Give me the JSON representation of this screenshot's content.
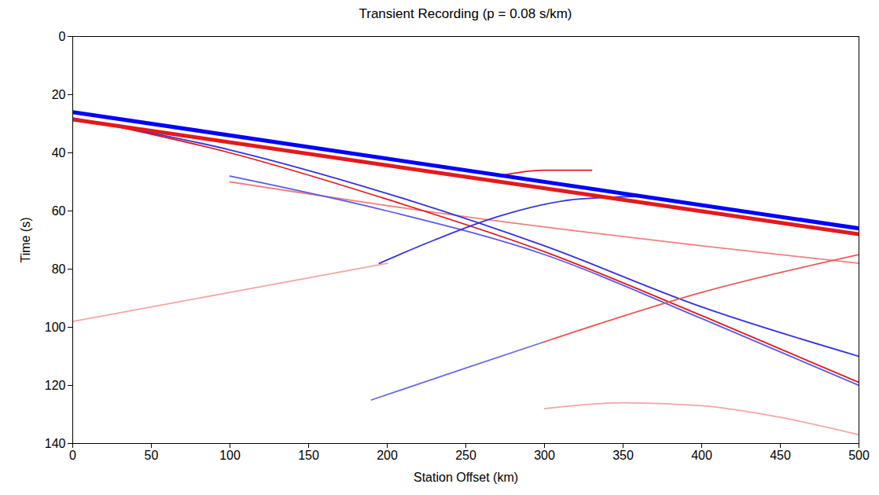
{
  "chart_data": {
    "type": "line",
    "title": "Transient Recording (p = 0.08 s/km)",
    "x_label": "Station Offset (km)",
    "y_label": "Time (s)",
    "xlim": [
      0,
      500
    ],
    "xticks": [
      0,
      50,
      100,
      150,
      200,
      250,
      300,
      350,
      400,
      450,
      500
    ],
    "ylim": [
      140,
      0
    ],
    "yticks": [
      0,
      20,
      40,
      60,
      80,
      100,
      120,
      140
    ],
    "grid": false,
    "series": [
      {
        "color": "#f3a6a6",
        "line_style": "solid",
        "x": [
          0,
          100,
          200
        ],
        "values": [
          98,
          88,
          78
        ]
      },
      {
        "color": "#f3a6a6",
        "line_style": "solid",
        "x": [
          300,
          350,
          400,
          450,
          500
        ],
        "values": [
          128,
          126,
          127,
          131,
          137
        ]
      },
      {
        "color": "#f08080",
        "line_style": "solid",
        "x": [
          100,
          250,
          400,
          500
        ],
        "values": [
          50,
          62,
          72,
          78
        ]
      },
      {
        "color": "#5a5ae6",
        "line_style": "solid",
        "x": [
          100,
          200,
          300,
          400,
          500
        ],
        "values": [
          48,
          60,
          75,
          97,
          120
        ]
      },
      {
        "color": "#e31a1c",
        "line_style": "solid",
        "x": [
          20,
          100,
          200,
          300,
          400,
          500
        ],
        "values": [
          30,
          40,
          56,
          74,
          96,
          119
        ]
      },
      {
        "color": "#3333dd",
        "line_style": "solid",
        "x": [
          0,
          100,
          200,
          300,
          400,
          500
        ],
        "values": [
          28,
          39,
          54,
          72,
          93,
          110
        ]
      },
      {
        "color": "#3333dd",
        "line_style": "solid",
        "x": [
          195,
          230,
          270,
          320,
          360
        ],
        "values": [
          78,
          70,
          62,
          56,
          55
        ]
      },
      {
        "color": "#e31a1c",
        "line_style": "solid",
        "x": [
          270,
          300,
          330
        ],
        "values": [
          48,
          46,
          46
        ]
      },
      {
        "color": "#6b6be8",
        "line_style": "solid",
        "x": [
          190,
          250,
          300
        ],
        "values": [
          125,
          114,
          105
        ]
      },
      {
        "color": "#ee5555",
        "line_style": "solid",
        "x": [
          300,
          400,
          500
        ],
        "values": [
          105,
          88,
          75
        ]
      },
      {
        "color": "#e31a1c",
        "line_style": "bold",
        "x": [
          0,
          500
        ],
        "values": [
          28.5,
          68
        ]
      },
      {
        "color": "#0000ff",
        "line_style": "bold",
        "x": [
          0,
          500
        ],
        "values": [
          26,
          66
        ]
      }
    ]
  }
}
